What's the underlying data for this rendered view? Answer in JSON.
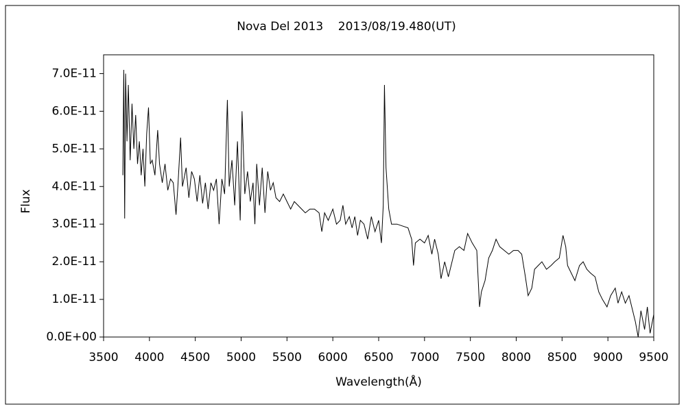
{
  "chart_data": {
    "type": "line",
    "title": "Nova Del 2013    2013/08/19.480(UT)",
    "x_label": "Wavelength(Å)",
    "y_label": "Flux",
    "color": "#000000",
    "xlim": [
      3500,
      9500
    ],
    "xticks": [
      3500,
      4000,
      4500,
      5000,
      5500,
      6000,
      6500,
      7000,
      7500,
      8000,
      8500,
      9000,
      9500
    ],
    "ylim": [
      0,
      7.5e-11
    ],
    "yticks": [
      {
        "value": 0,
        "label": "0.0E+00"
      },
      {
        "value": 1e-11,
        "label": "1.0E-11"
      },
      {
        "value": 2e-11,
        "label": "2.0E-11"
      },
      {
        "value": 3e-11,
        "label": "3.0E-11"
      },
      {
        "value": 4e-11,
        "label": "4.0E-11"
      },
      {
        "value": 5e-11,
        "label": "5.0E-11"
      },
      {
        "value": 6e-11,
        "label": "6.0E-11"
      },
      {
        "value": 7e-11,
        "label": "7.0E-11"
      }
    ],
    "grid": false,
    "x": [
      3710,
      3720,
      3730,
      3740,
      3755,
      3770,
      3790,
      3810,
      3830,
      3850,
      3870,
      3890,
      3910,
      3930,
      3950,
      3970,
      3990,
      4010,
      4030,
      4060,
      4090,
      4110,
      4140,
      4170,
      4200,
      4230,
      4260,
      4290,
      4310,
      4340,
      4360,
      4400,
      4430,
      4460,
      4490,
      4520,
      4550,
      4580,
      4610,
      4640,
      4670,
      4700,
      4730,
      4760,
      4790,
      4820,
      4850,
      4870,
      4900,
      4930,
      4960,
      4990,
      5010,
      5040,
      5070,
      5100,
      5130,
      5150,
      5170,
      5200,
      5230,
      5260,
      5290,
      5320,
      5350,
      5380,
      5420,
      5460,
      5500,
      5540,
      5580,
      5620,
      5660,
      5700,
      5750,
      5800,
      5850,
      5880,
      5910,
      5950,
      6000,
      6040,
      6080,
      6110,
      6140,
      6180,
      6210,
      6240,
      6270,
      6300,
      6340,
      6380,
      6420,
      6460,
      6500,
      6530,
      6550,
      6563,
      6580,
      6610,
      6640,
      6700,
      6760,
      6820,
      6860,
      6880,
      6900,
      6950,
      7000,
      7040,
      7080,
      7110,
      7150,
      7180,
      7220,
      7260,
      7290,
      7330,
      7380,
      7430,
      7470,
      7520,
      7570,
      7600,
      7620,
      7660,
      7700,
      7740,
      7780,
      7820,
      7870,
      7920,
      7970,
      8020,
      8060,
      8100,
      8130,
      8170,
      8200,
      8240,
      8280,
      8330,
      8380,
      8420,
      8470,
      8510,
      8540,
      8560,
      8600,
      8640,
      8690,
      8730,
      8770,
      8810,
      8860,
      8900,
      8940,
      8990,
      9030,
      9080,
      9110,
      9150,
      9190,
      9230,
      9270,
      9300,
      9330,
      9360,
      9400,
      9430,
      9460,
      9500
    ],
    "values": [
      4.3e-11,
      7.1e-11,
      3.15e-11,
      7e-11,
      5.2e-11,
      6.7e-11,
      4.7e-11,
      6.2e-11,
      5e-11,
      5.9e-11,
      4.6e-11,
      5.2e-11,
      4.3e-11,
      5e-11,
      4e-11,
      5.4e-11,
      6.1e-11,
      4.6e-11,
      4.7e-11,
      4.3e-11,
      5.5e-11,
      4.6e-11,
      4.1e-11,
      4.6e-11,
      3.9e-11,
      4.2e-11,
      4.1e-11,
      3.25e-11,
      4e-11,
      5.3e-11,
      4e-11,
      4.5e-11,
      3.7e-11,
      4.4e-11,
      4.2e-11,
      3.6e-11,
      4.3e-11,
      3.55e-11,
      4.1e-11,
      3.4e-11,
      4.1e-11,
      3.9e-11,
      4.2e-11,
      3e-11,
      4.2e-11,
      3.8e-11,
      6.3e-11,
      4e-11,
      4.7e-11,
      3.5e-11,
      5.2e-11,
      3.1e-11,
      6e-11,
      3.8e-11,
      4.4e-11,
      3.6e-11,
      4.1e-11,
      3e-11,
      4.6e-11,
      3.5e-11,
      4.5e-11,
      3.3e-11,
      4.4e-11,
      3.9e-11,
      4.1e-11,
      3.7e-11,
      3.6e-11,
      3.8e-11,
      3.6e-11,
      3.4e-11,
      3.6e-11,
      3.5e-11,
      3.4e-11,
      3.3e-11,
      3.4e-11,
      3.4e-11,
      3.3e-11,
      2.8e-11,
      3.3e-11,
      3.1e-11,
      3.4e-11,
      3e-11,
      3.1e-11,
      3.5e-11,
      3e-11,
      3.2e-11,
      2.9e-11,
      3.2e-11,
      2.7e-11,
      3.1e-11,
      3e-11,
      2.6e-11,
      3.2e-11,
      2.8e-11,
      3.1e-11,
      2.5e-11,
      3.5e-11,
      6.7e-11,
      4.5e-11,
      3.4e-11,
      3e-11,
      3e-11,
      2.95e-11,
      2.9e-11,
      2.6e-11,
      1.9e-11,
      2.5e-11,
      2.6e-11,
      2.5e-11,
      2.7e-11,
      2.2e-11,
      2.6e-11,
      2.2e-11,
      1.55e-11,
      2e-11,
      1.6e-11,
      1.9e-11,
      2.3e-11,
      2.4e-11,
      2.3e-11,
      2.75e-11,
      2.5e-11,
      2.3e-11,
      8e-12,
      1.2e-11,
      1.5e-11,
      2.1e-11,
      2.3e-11,
      2.6e-11,
      2.4e-11,
      2.3e-11,
      2.2e-11,
      2.3e-11,
      2.3e-11,
      2.2e-11,
      1.6e-11,
      1.1e-11,
      1.3e-11,
      1.8e-11,
      1.9e-11,
      2e-11,
      1.8e-11,
      1.9e-11,
      2e-11,
      2.1e-11,
      2.7e-11,
      2.4e-11,
      1.9e-11,
      1.7e-11,
      1.5e-11,
      1.9e-11,
      2e-11,
      1.8e-11,
      1.7e-11,
      1.6e-11,
      1.2e-11,
      1e-11,
      8e-12,
      1.1e-11,
      1.3e-11,
      9e-12,
      1.2e-11,
      9e-12,
      1.1e-11,
      7e-12,
      4e-12,
      0.0,
      7e-12,
      2e-12,
      8e-12,
      1e-12,
      6e-12
    ]
  }
}
